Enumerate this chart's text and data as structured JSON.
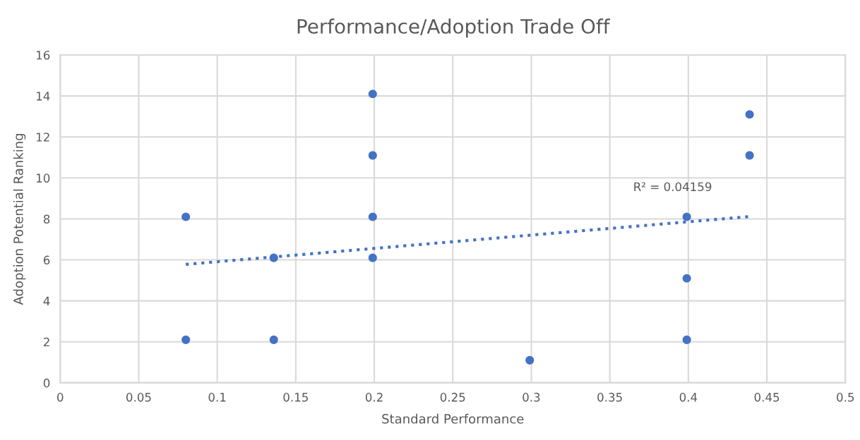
{
  "chart_data": {
    "type": "scatter",
    "title": "Performance/Adoption Trade Off",
    "xlabel": "Standard Performance",
    "ylabel": "Adoption Potential Ranking",
    "series": [
      {
        "color": "#4472c4",
        "marker": "circle",
        "x": [
          0.08,
          0.08,
          0.136,
          0.136,
          0.199,
          0.199,
          0.199,
          0.199,
          0.299,
          0.399,
          0.399,
          0.399,
          0.439,
          0.439
        ],
        "values": [
          8.1,
          2.1,
          6.1,
          2.1,
          14.1,
          11.1,
          8.1,
          6.1,
          1.1,
          8.1,
          5.1,
          2.1,
          13.1,
          11.1
        ]
      },
      {
        "type": "line",
        "color": "#4472c4",
        "line_style": "dotted",
        "marker": "none",
        "x": [
          0.08,
          0.44
        ],
        "values": [
          5.78,
          8.12
        ]
      }
    ],
    "annotations": [
      "R² = 0.04159"
    ],
    "xlim": [
      0,
      0.5
    ],
    "xticks": [
      0,
      0.05,
      0.1,
      0.15,
      0.2,
      0.25,
      0.3,
      0.35,
      0.4,
      0.45,
      0.5
    ],
    "ylim": [
      0,
      16
    ],
    "yticks": [
      0,
      2,
      4,
      6,
      8,
      10,
      12,
      14,
      16
    ],
    "grid": true
  }
}
